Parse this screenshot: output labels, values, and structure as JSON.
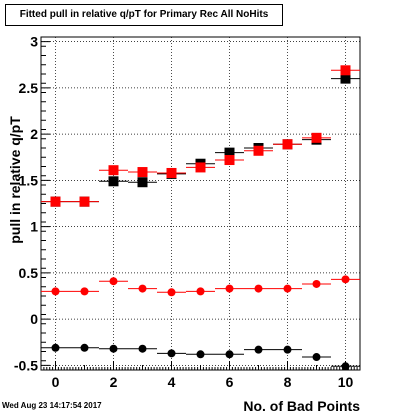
{
  "title": "Fitted pull in relative q/pT for Primary Rec All NoHits",
  "timestamp": "Wed Aug 23 14:17:54 2017",
  "chart_data": {
    "type": "scatter",
    "xlabel": "No. of Bad Points",
    "ylabel": "pull in relative q/pT",
    "xlim": [
      -0.5,
      10.5
    ],
    "ylim": [
      -0.55,
      3.05
    ],
    "grid": true,
    "x_ticks": [
      "0",
      "2",
      "4",
      "6",
      "8",
      "10"
    ],
    "y_ticks": [
      "-0.5",
      "0",
      "0.5",
      "1",
      "1.5",
      "2",
      "2.5",
      "3"
    ],
    "x": [
      0,
      1,
      2,
      3,
      4,
      5,
      6,
      7,
      8,
      9,
      10
    ],
    "series": [
      {
        "marker": "square",
        "color": "#000000",
        "values": [
          1.27,
          1.27,
          1.49,
          1.48,
          1.57,
          1.68,
          1.8,
          1.85,
          1.89,
          1.94,
          2.6
        ]
      },
      {
        "marker": "square",
        "color": "#ff0000",
        "values": [
          1.27,
          1.27,
          1.61,
          1.59,
          1.58,
          1.64,
          1.72,
          1.82,
          1.89,
          1.96,
          2.69
        ]
      },
      {
        "marker": "circle",
        "color": "#ff0000",
        "values": [
          0.3,
          0.3,
          0.41,
          0.33,
          0.29,
          0.3,
          0.33,
          0.33,
          0.33,
          0.38,
          0.43
        ]
      },
      {
        "marker": "circle",
        "color": "#000000",
        "values": [
          -0.31,
          -0.31,
          -0.32,
          -0.32,
          -0.37,
          -0.38,
          -0.38,
          -0.33,
          -0.33,
          -0.41,
          -0.51
        ]
      }
    ]
  }
}
